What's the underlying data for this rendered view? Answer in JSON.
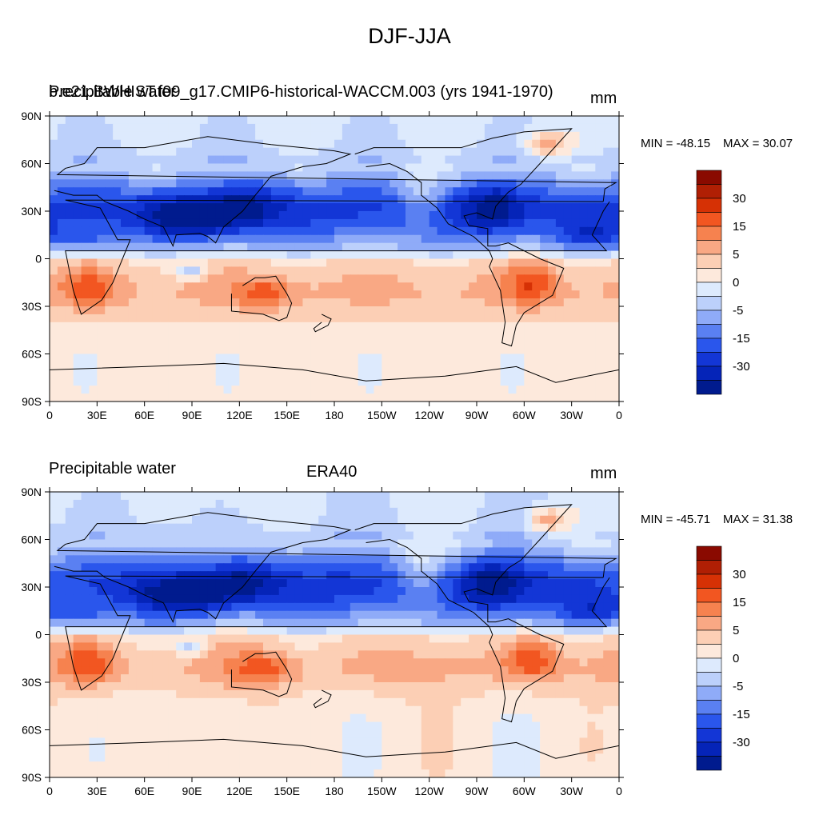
{
  "title": "DJF-JJA",
  "panels": [
    {
      "left_title": "Precipitable water",
      "overlay_title": "b.e21.BWHIST.f09_g17.CMIP6-historical-WACCM.003 (yrs 1941-1970)",
      "right_title": "mm",
      "min_label": "MIN = -48.15",
      "max_label": "MAX =  30.07"
    },
    {
      "left_title": "Precipitable water",
      "center_title": "ERA40",
      "right_title": "mm",
      "min_label": "MIN = -45.71",
      "max_label": "MAX =  31.38"
    }
  ],
  "colors": {
    "levels": [
      "#001b8e",
      "#0524b8",
      "#1336d6",
      "#2a56ec",
      "#5a80f2",
      "#8fabf8",
      "#bcd0fb",
      "#ddeafd",
      "#fde9dc",
      "#fccfb5",
      "#f9a884",
      "#f6824f",
      "#f25621",
      "#d63105",
      "#b01f04",
      "#8a0a00"
    ],
    "land_line": "#000000",
    "frame": "#000000"
  },
  "chart_data": [
    {
      "type": "heatmap",
      "title": "b.e21.BWHIST.f09_g17.CMIP6-historical-WACCM.003 (yrs 1941-1970)",
      "variable": "Precipitable water",
      "units": "mm",
      "x_ticks": [
        "0",
        "30E",
        "60E",
        "90E",
        "120E",
        "150E",
        "180",
        "150W",
        "120W",
        "90W",
        "60W",
        "30W",
        "0"
      ],
      "y_ticks": [
        "90N",
        "60N",
        "30N",
        "0",
        "30S",
        "60S",
        "90S"
      ],
      "xlim": [
        0,
        360
      ],
      "ylim": [
        -90,
        90
      ],
      "min": -48.15,
      "max": 30.07,
      "colorbar_labels": [
        "30",
        "15",
        "5",
        "0",
        "-5",
        "-15",
        "-30"
      ],
      "grid": false
    },
    {
      "type": "heatmap",
      "title": "ERA40",
      "variable": "Precipitable water",
      "units": "mm",
      "x_ticks": [
        "0",
        "30E",
        "60E",
        "90E",
        "120E",
        "150E",
        "180",
        "150W",
        "120W",
        "90W",
        "60W",
        "30W",
        "0"
      ],
      "y_ticks": [
        "90N",
        "60N",
        "30N",
        "0",
        "30S",
        "60S",
        "90S"
      ],
      "xlim": [
        0,
        360
      ],
      "ylim": [
        -90,
        90
      ],
      "min": -45.71,
      "max": 31.38,
      "colorbar_labels": [
        "30",
        "15",
        "5",
        "0",
        "-5",
        "-15",
        "-30"
      ],
      "grid": false
    }
  ]
}
